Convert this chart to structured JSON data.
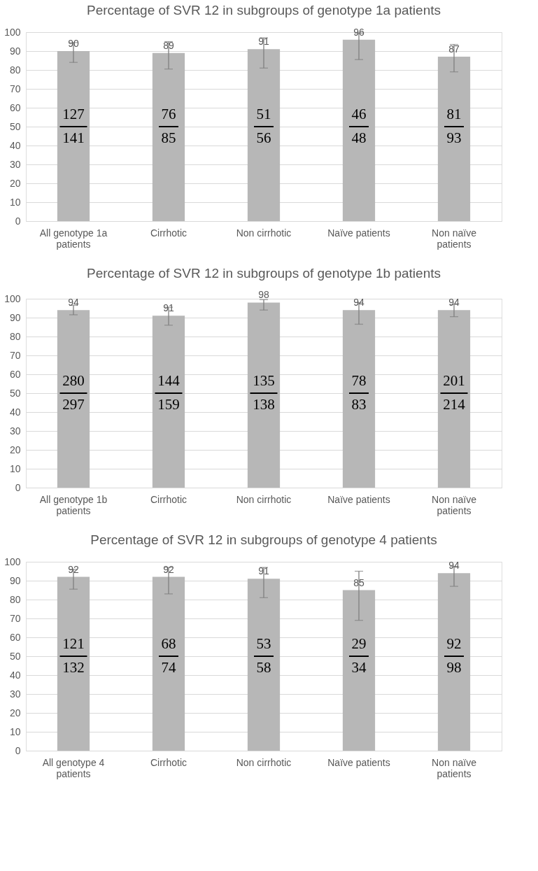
{
  "chart_data": [
    {
      "type": "bar",
      "title": "Percentage of SVR 12 in subgroups of genotype 1a patients",
      "categories": [
        "All genotype 1a patients",
        "Cirrhotic",
        "Non cirrhotic",
        "Naïve patients",
        "Non naïve patients"
      ],
      "values": [
        90,
        89,
        91,
        96,
        87
      ],
      "color": "#b7b7b7",
      "errors": [
        [
          84,
          94.5
        ],
        [
          80.5,
          95
        ],
        [
          81,
          97
        ],
        [
          85.5,
          99.5
        ],
        [
          79,
          93.5
        ]
      ],
      "annotations": [
        "127",
        "141",
        "76",
        "85",
        "51",
        "56",
        "46",
        "48",
        "81",
        "93"
      ],
      "ylim": [
        0,
        100
      ],
      "yticks": [
        0,
        10,
        20,
        30,
        40,
        50,
        60,
        70,
        80,
        90,
        100
      ],
      "grid": "y",
      "data_labels": true
    },
    {
      "type": "bar",
      "title": "Percentage of SVR 12 in subgroups of genotype 1b patients",
      "categories": [
        "All genotype 1b patients",
        "Cirrhotic",
        "Non cirrhotic",
        "Naïve patients",
        "Non naïve patients"
      ],
      "values": [
        94,
        91,
        98,
        94,
        94
      ],
      "color": "#b7b7b7",
      "errors": [
        [
          91.5,
          96.5
        ],
        [
          86,
          95.5
        ],
        [
          94,
          99.5
        ],
        [
          86.5,
          98
        ],
        [
          90.5,
          97
        ]
      ],
      "annotations": [
        "280",
        "297",
        "144",
        "159",
        "135",
        "138",
        "78",
        "83",
        "201",
        "214"
      ],
      "ylim": [
        0,
        100
      ],
      "yticks": [
        0,
        10,
        20,
        30,
        40,
        50,
        60,
        70,
        80,
        90,
        100
      ],
      "grid": "y",
      "data_labels": true
    },
    {
      "type": "bar",
      "title": "Percentage of SVR 12 in subgroups of genotype 4 patients",
      "categories": [
        "All genotype 4 patients",
        "Cirrhotic",
        "Non cirrhotic",
        "Naïve patients",
        "Non naïve patients"
      ],
      "values": [
        92,
        92,
        91,
        85,
        94
      ],
      "color": "#b7b7b7",
      "errors": [
        [
          85.5,
          96
        ],
        [
          83,
          97
        ],
        [
          81,
          97
        ],
        [
          69,
          95
        ],
        [
          87,
          97.5
        ]
      ],
      "annotations": [
        "121",
        "132",
        "68",
        "74",
        "53",
        "58",
        "29",
        "34",
        "92",
        "98"
      ],
      "ylim": [
        0,
        100
      ],
      "yticks": [
        0,
        10,
        20,
        30,
        40,
        50,
        60,
        70,
        80,
        90,
        100
      ],
      "grid": "y",
      "data_labels": true
    }
  ]
}
